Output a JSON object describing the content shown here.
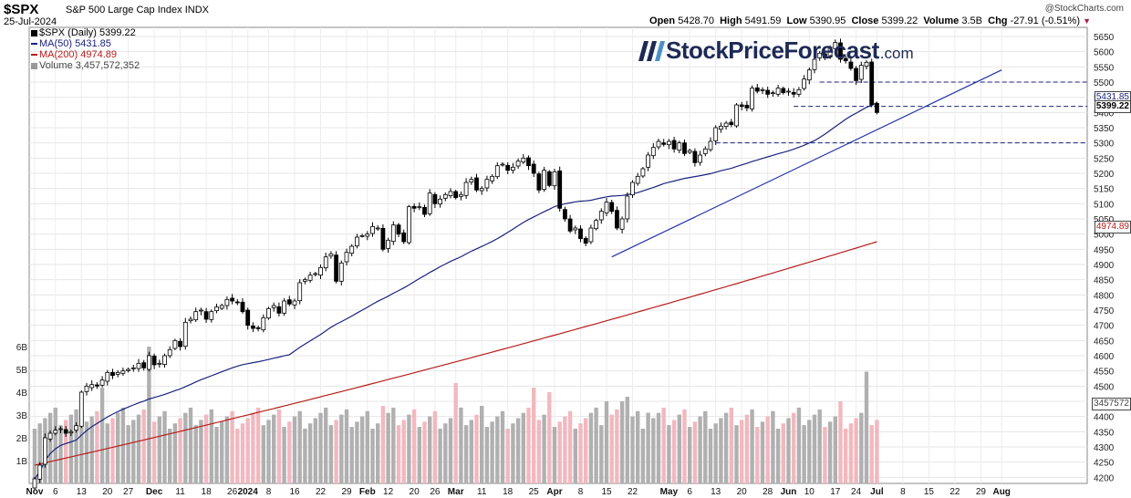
{
  "header": {
    "symbol": "$SPX",
    "index_name": "S&P 500 Large Cap Index",
    "exchange": "INDX",
    "date": "25-Jul-2024",
    "open_label": "Open",
    "open": "5428.70",
    "high_label": "High",
    "high": "5491.59",
    "low_label": "Low",
    "low": "5390.95",
    "close_label": "Close",
    "close": "5399.22",
    "volume_label": "Volume",
    "volume": "3.5B",
    "chg_label": "Chg",
    "chg": "-27.91 (-0.51%)",
    "chg_arrow": "▼"
  },
  "watermark": {
    "brand": "StockPriceForecast",
    "tld": ".com"
  },
  "credit": "@StockCharts.com",
  "legend": {
    "price": "$SPX (Daily) 5399.22",
    "ma50": "MA(50) 5431.85",
    "ma200": "MA(200) 4974.89",
    "volume": "Volume 3,457,572,352"
  },
  "markers": {
    "ma50": "5431.85",
    "close": "5399.22",
    "ma200": "4974.89",
    "volume": "3457572"
  },
  "colors": {
    "up": "#000000",
    "down": "#000000",
    "ma50": "#1a237e",
    "ma200": "#b71c1c",
    "vol_up": "#b0b0b0",
    "vol_down": "#f2b8bf",
    "trend": "#2233aa",
    "support": "#1a237e"
  },
  "chart_data": {
    "type": "candlestick",
    "title": "$SPX S&P 500 Large Cap Index INDX",
    "y_axis_ticks": [
      4200,
      4250,
      4300,
      4350,
      4400,
      4450,
      4500,
      4550,
      4600,
      4650,
      4700,
      4750,
      4800,
      4850,
      4900,
      4950,
      5000,
      5050,
      5100,
      5150,
      5200,
      5250,
      5300,
      5350,
      5400,
      5450,
      5500,
      5550,
      5600,
      5650
    ],
    "ylim": [
      4180,
      5680
    ],
    "volume_ticks": [
      "1B",
      "2B",
      "3B",
      "4B",
      "5B",
      "6B"
    ],
    "volume_ticks_values": [
      1,
      2,
      3,
      4,
      5,
      6
    ],
    "x_axis_ticks": [
      {
        "i": 0,
        "label": "Nov"
      },
      {
        "i": 4,
        "label": "6"
      },
      {
        "i": 9,
        "label": "13"
      },
      {
        "i": 14,
        "label": "20"
      },
      {
        "i": 18,
        "label": "27"
      },
      {
        "i": 23,
        "label": "Dec"
      },
      {
        "i": 28,
        "label": "11"
      },
      {
        "i": 33,
        "label": "18"
      },
      {
        "i": 38,
        "label": "26"
      },
      {
        "i": 41,
        "label": "2024"
      },
      {
        "i": 45,
        "label": "8"
      },
      {
        "i": 50,
        "label": "16"
      },
      {
        "i": 55,
        "label": "22"
      },
      {
        "i": 60,
        "label": "29"
      },
      {
        "i": 64,
        "label": "Feb"
      },
      {
        "i": 68,
        "label": "12"
      },
      {
        "i": 73,
        "label": "20"
      },
      {
        "i": 77,
        "label": "26"
      },
      {
        "i": 81,
        "label": "Mar"
      },
      {
        "i": 86,
        "label": "11"
      },
      {
        "i": 91,
        "label": "18"
      },
      {
        "i": 96,
        "label": "25"
      },
      {
        "i": 100,
        "label": "Apr"
      },
      {
        "i": 105,
        "label": "8"
      },
      {
        "i": 110,
        "label": "15"
      },
      {
        "i": 115,
        "label": "22"
      },
      {
        "i": 122,
        "label": "May"
      },
      {
        "i": 126,
        "label": "6"
      },
      {
        "i": 131,
        "label": "13"
      },
      {
        "i": 136,
        "label": "20"
      },
      {
        "i": 141,
        "label": "28"
      },
      {
        "i": 145,
        "label": "Jun"
      },
      {
        "i": 149,
        "label": "10"
      },
      {
        "i": 154,
        "label": "17"
      },
      {
        "i": 158,
        "label": "24"
      },
      {
        "i": 162,
        "label": "Jul"
      },
      {
        "i": 167,
        "label": "8"
      },
      {
        "i": 172,
        "label": "15"
      },
      {
        "i": 177,
        "label": "22"
      },
      {
        "i": 182,
        "label": "29"
      },
      {
        "i": 186,
        "label": "Aug"
      }
    ],
    "series": [
      {
        "name": "$SPX (Daily)",
        "close_values": [
          4195,
          4240,
          4330,
          4345,
          4355,
          4360,
          4345,
          4350,
          4370,
          4480,
          4500,
          4505,
          4500,
          4520,
          4545,
          4535,
          4545,
          4550,
          4555,
          4560,
          4575,
          4560,
          4600,
          4570,
          4575,
          4600,
          4620,
          4650,
          4630,
          4710,
          4720,
          4745,
          4750,
          4720,
          4745,
          4760,
          4765,
          4785,
          4780,
          4775,
          4745,
          4700,
          4690,
          4690,
          4725,
          4755,
          4765,
          4740,
          4780,
          4770,
          4780,
          4840,
          4850,
          4865,
          4870,
          4890,
          4925,
          4935,
          4845,
          4905,
          4940,
          4960,
          4990,
          4995,
          5000,
          5025,
          5020,
          4950,
          4980,
          5030,
          5000,
          4975,
          5090,
          5085,
          5090,
          5065,
          5135,
          5100,
          5115,
          5130,
          5140,
          5120,
          5130,
          5170,
          5180,
          5145,
          5150,
          5180,
          5190,
          5225,
          5230,
          5210,
          5220,
          5240,
          5250,
          5225,
          5200,
          5145,
          5210,
          5160,
          5205,
          5085,
          5050,
          5010,
          5020,
          4985,
          4970,
          5020,
          5045,
          5075,
          5105,
          5075,
          5020,
          5050,
          5125,
          5170,
          5190,
          5215,
          5260,
          5285,
          5305,
          5295,
          5305,
          5280,
          5300,
          5265,
          5275,
          5235,
          5260,
          5280,
          5305,
          5350,
          5355,
          5365,
          5360,
          5425,
          5420,
          5415,
          5480,
          5470,
          5475,
          5460,
          5465,
          5480,
          5465,
          5470,
          5460,
          5475,
          5510,
          5540,
          5575,
          5595,
          5580,
          5615,
          5630,
          5575,
          5570,
          5545,
          5505,
          5555,
          5565,
          5425,
          5400
        ]
      },
      {
        "name": "MA(50)",
        "last": 5431.85
      },
      {
        "name": "MA(200)",
        "last": 4974.89
      },
      {
        "name": "Volume",
        "last": 3457572352
      }
    ],
    "support_levels": [
      5500,
      5420,
      5300
    ],
    "trendline": {
      "from": {
        "i": 111,
        "v": 4925
      },
      "to": {
        "i": 186,
        "v": 5540
      }
    },
    "grid": true
  }
}
